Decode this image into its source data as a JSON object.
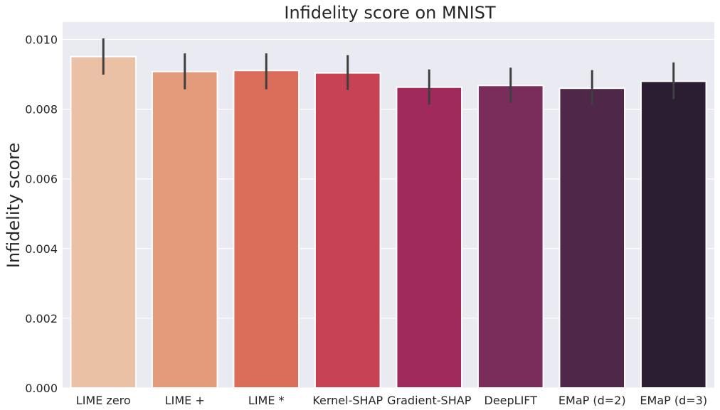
{
  "chart_data": {
    "type": "bar",
    "title": "Infidelity score on MNIST",
    "xlabel": "",
    "ylabel": "Infidelity score",
    "categories": [
      "LIME zero",
      "LIME +",
      "LIME *",
      "Kernel-SHAP",
      "Gradient-SHAP",
      "DeepLIFT",
      "EMaP (d=2)",
      "EMaP (d=3)"
    ],
    "values": [
      0.00951,
      0.00908,
      0.00911,
      0.00904,
      0.00863,
      0.00868,
      0.0086,
      0.0088
    ],
    "error_low": [
      0.00899,
      0.00857,
      0.00857,
      0.00855,
      0.00813,
      0.00818,
      0.00811,
      0.00829
    ],
    "error_high": [
      0.01003,
      0.0096,
      0.0096,
      0.00955,
      0.00914,
      0.00919,
      0.00912,
      0.00934
    ],
    "ylim": [
      0,
      0.0105
    ],
    "yticks": [
      "0.000",
      "0.002",
      "0.004",
      "0.006",
      "0.008",
      "0.010"
    ],
    "ytick_values": [
      0,
      0.002,
      0.004,
      0.006,
      0.008,
      0.01
    ],
    "colors": [
      "#ebc1a6",
      "#e49b7b",
      "#db6e5a",
      "#c74253",
      "#a02a5c",
      "#7a2c5b",
      "#4f2749",
      "#2c1e32"
    ],
    "background": "#eaeaf2",
    "grid": true,
    "errorbar_color": "#3f3f3f"
  }
}
